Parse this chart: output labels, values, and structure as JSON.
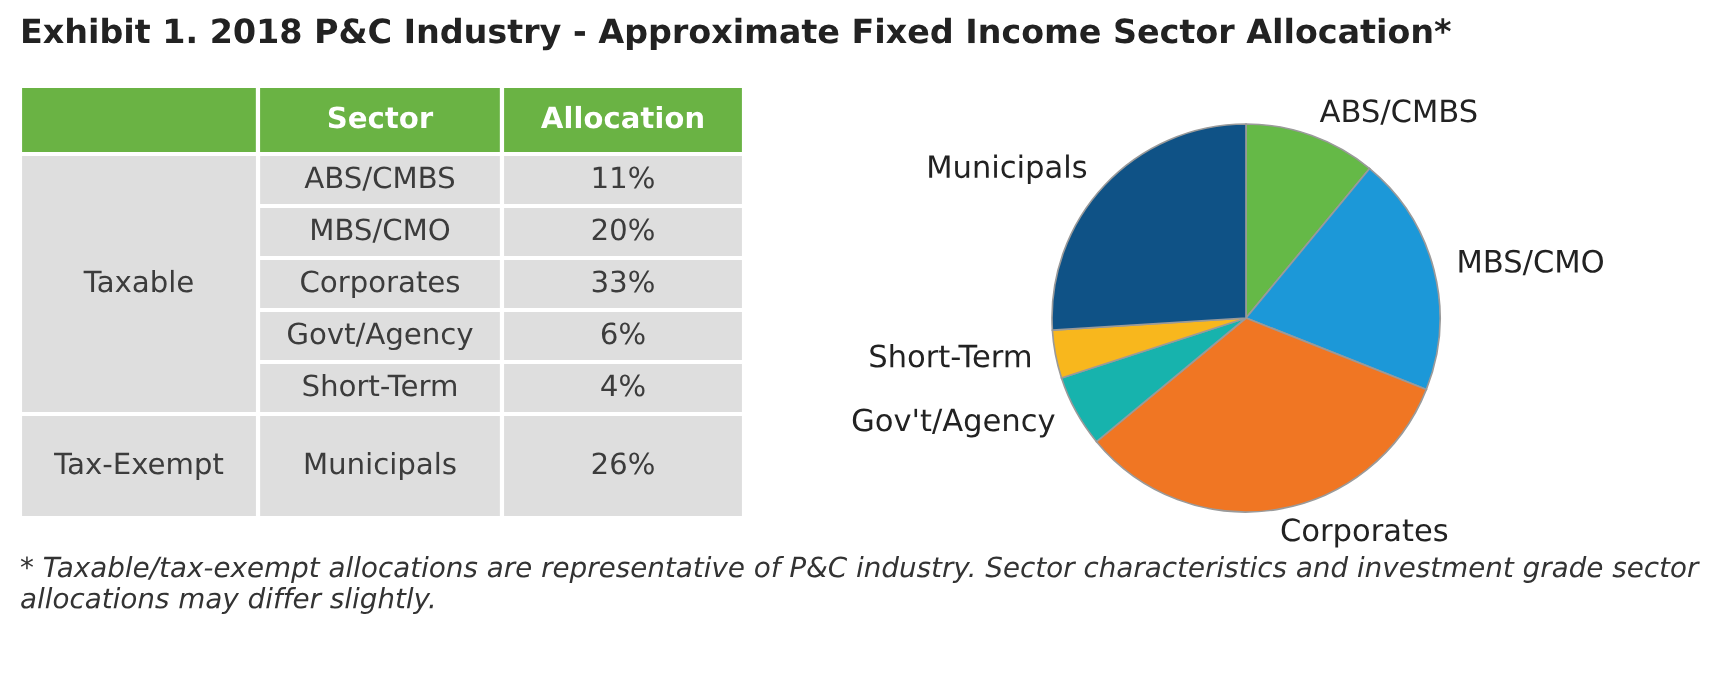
{
  "chart_data": [
    {
      "type": "other",
      "title": "Exhibit 1. 2018 P&C Industry - Approximate Fixed Income Sector Allocation*",
      "categories": [
        "ABS/CMBS",
        "MBS/CMO",
        "Corporates",
        "Govt/Agency",
        "Short-Term",
        "Municipals"
      ],
      "y_categories": [
        "Taxable",
        null,
        null,
        null,
        null,
        "Tax-Exempt"
      ],
      "values": [
        11,
        20,
        33,
        6,
        4,
        26
      ],
      "value_labels": [
        "11%",
        "20%",
        "33%",
        "6%",
        "4%",
        "26%"
      ],
      "annotations": [
        "Sector",
        "Allocation"
      ]
    },
    {
      "type": "pie",
      "categories": [
        "ABS/CMBS",
        "MBS/CMO",
        "Corporates",
        "Gov't/Agency",
        "Short-Term",
        "Municipals"
      ],
      "values": [
        11,
        20,
        33,
        6,
        4,
        26
      ],
      "colors": [
        "#65b947",
        "#1c98d8",
        "#f07623",
        "#17b3ad",
        "#f8b71d",
        "#0f5286"
      ],
      "annotations": [
        "* Taxable/tax-exempt allocations are representative of P&C industry. Sector characteristics and investment grade sector allocations may differ slightly."
      ]
    }
  ]
}
